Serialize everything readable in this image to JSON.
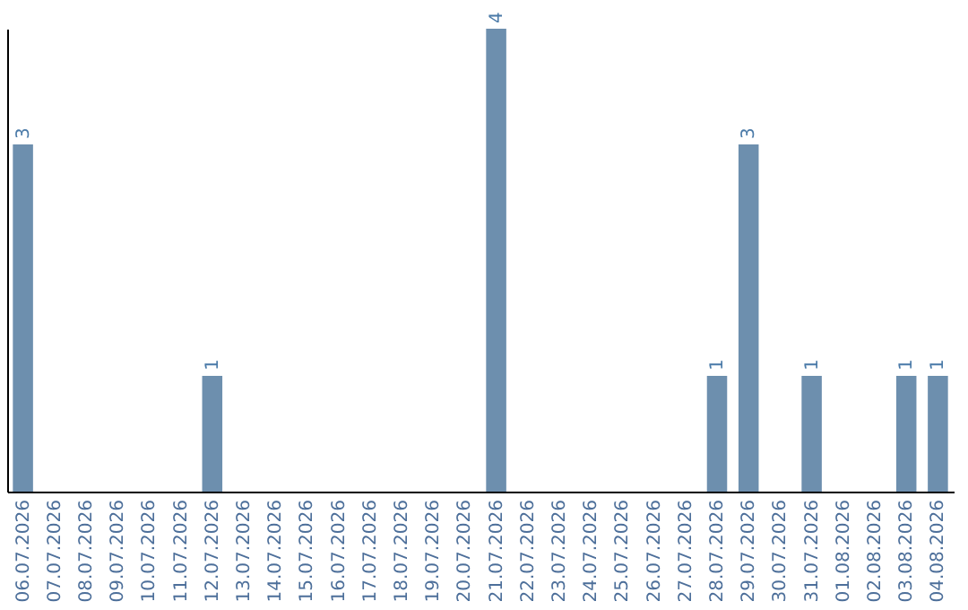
{
  "chart_data": {
    "type": "bar",
    "categories": [
      "06.07.2026",
      "07.07.2026",
      "08.07.2026",
      "09.07.2026",
      "10.07.2026",
      "11.07.2026",
      "12.07.2026",
      "13.07.2026",
      "14.07.2026",
      "15.07.2026",
      "16.07.2026",
      "17.07.2026",
      "18.07.2026",
      "19.07.2026",
      "20.07.2026",
      "21.07.2026",
      "22.07.2026",
      "23.07.2026",
      "24.07.2026",
      "25.07.2026",
      "26.07.2026",
      "27.07.2026",
      "28.07.2026",
      "29.07.2026",
      "30.07.2026",
      "31.07.2026",
      "01.08.2026",
      "02.08.2026",
      "03.08.2026",
      "04.08.2026"
    ],
    "values": [
      3,
      0,
      0,
      0,
      0,
      0,
      1,
      0,
      0,
      0,
      0,
      0,
      0,
      0,
      0,
      4,
      0,
      0,
      0,
      0,
      0,
      0,
      1,
      3,
      0,
      1,
      0,
      0,
      1,
      1
    ],
    "value_labels": [
      "3",
      null,
      null,
      null,
      null,
      null,
      "1",
      null,
      null,
      null,
      null,
      null,
      null,
      null,
      null,
      "4",
      null,
      null,
      null,
      null,
      null,
      null,
      "1",
      "3",
      null,
      "1",
      null,
      null,
      "1",
      "1"
    ],
    "color": "#6d8fae",
    "grid": false
  }
}
